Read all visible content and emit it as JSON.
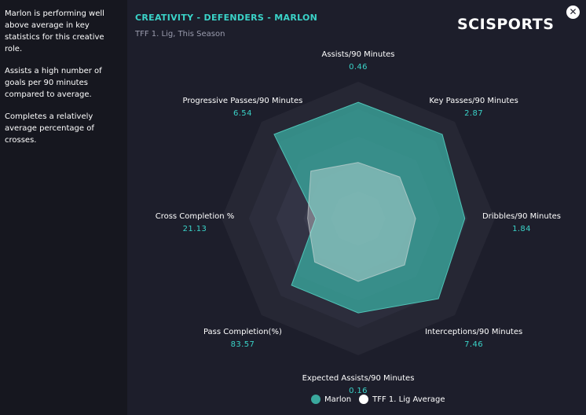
{
  "insights": [
    "Marlon is performing well above average in key statistics for this creative role.",
    "Assists a high number of goals per 90 minutes compared to average.",
    "Completes a relatively average percentage of crosses."
  ],
  "header": {
    "title": "CREATIVITY - DEFENDERS - MARLON",
    "subtitle": "TFF 1. Lig, This Season",
    "logo": "SCISPORTS",
    "close_icon": "close-icon"
  },
  "colors": {
    "background": "#1d1e2b",
    "player": "#3aa89d",
    "average": "#ffffff",
    "accent": "#3ad3c8"
  },
  "chart_data": {
    "type": "radar",
    "title": "CREATIVITY - DEFENDERS - MARLON",
    "axes": [
      {
        "label": "Assists/90 Minutes",
        "value": "0.46"
      },
      {
        "label": "Key Passes/90 Minutes",
        "value": "2.87"
      },
      {
        "label": "Dribbles/90 Minutes",
        "value": "1.84"
      },
      {
        "label": "Interceptions/90 Minutes",
        "value": "7.46"
      },
      {
        "label": "Expected Assists/90 Minutes",
        "value": "0.16"
      },
      {
        "label": "Pass Completion(%)",
        "value": "83.57"
      },
      {
        "label": "Cross Completion %",
        "value": "21.13"
      },
      {
        "label": "Progressive Passes/90 Minutes",
        "value": "6.54"
      }
    ],
    "range": [
      0,
      1
    ],
    "series": [
      {
        "name": "Marlon",
        "color": "#3aa89d",
        "values": [
          0.85,
          0.87,
          0.78,
          0.83,
          0.69,
          0.69,
          0.31,
          0.87
        ]
      },
      {
        "name": "TFF 1. Lig Average",
        "color": "#ffffff",
        "values": [
          0.41,
          0.43,
          0.42,
          0.48,
          0.46,
          0.45,
          0.37,
          0.49
        ]
      }
    ],
    "legend_position": "bottom"
  }
}
